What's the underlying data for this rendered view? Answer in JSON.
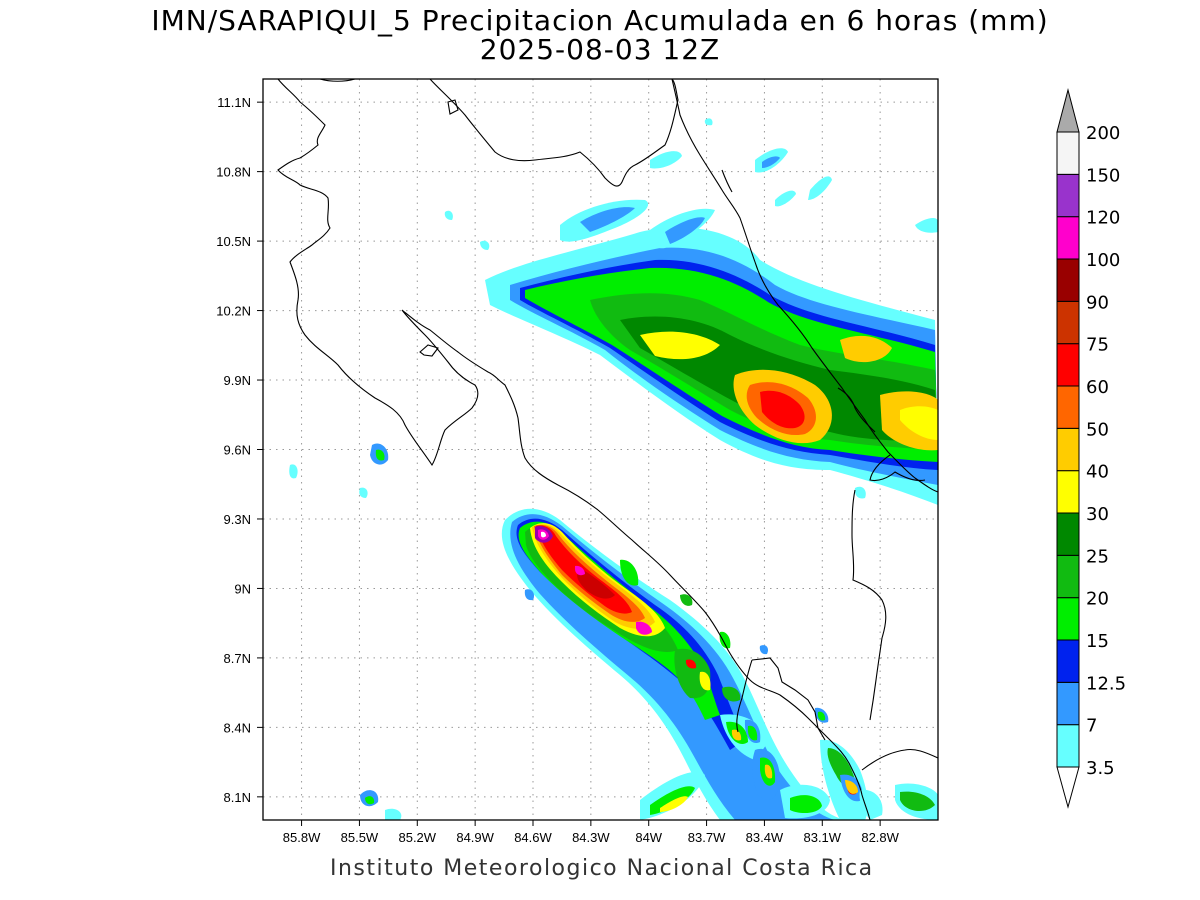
{
  "title": "IMN/SARAPIQUI_5 Precipitacion Acumulada en 6 horas (mm)",
  "subtitle": "2025-08-03 12Z",
  "footer": "Instituto Meteorologico Nacional Costa Rica",
  "map": {
    "lon_range": [
      -86.0,
      -82.5
    ],
    "lat_range": [
      8.0,
      11.2
    ],
    "lon_ticks": [
      "85.8W",
      "85.5W",
      "85.2W",
      "84.9W",
      "84.6W",
      "84.3W",
      "84W",
      "83.7W",
      "83.4W",
      "83.1W",
      "82.8W"
    ],
    "lon_values": [
      -85.8,
      -85.5,
      -85.2,
      -84.9,
      -84.6,
      -84.3,
      -84.0,
      -83.7,
      -83.4,
      -83.1,
      -82.8
    ],
    "lat_ticks": [
      "8.1N",
      "8.4N",
      "8.7N",
      "9N",
      "9.3N",
      "9.6N",
      "9.9N",
      "10.2N",
      "10.5N",
      "10.8N",
      "11.1N"
    ],
    "lat_values": [
      8.1,
      8.4,
      8.7,
      9.0,
      9.3,
      9.6,
      9.9,
      10.2,
      10.5,
      10.8,
      11.1
    ],
    "grid": "dotted"
  },
  "colorbar": {
    "labels": [
      "3.5",
      "7",
      "12.5",
      "15",
      "20",
      "25",
      "30",
      "40",
      "50",
      "60",
      "75",
      "90",
      "100",
      "120",
      "150",
      "200"
    ],
    "colors": [
      "#66ffff",
      "#3399ff",
      "#0022ee",
      "#00ee00",
      "#11bb11",
      "#008800",
      "#ffff00",
      "#ffcc00",
      "#ff6600",
      "#ff0000",
      "#cc3300",
      "#990000",
      "#ff00cc",
      "#9933cc",
      "#f5f5f5",
      "#aaaaaa"
    ]
  },
  "coast_color": "#000000"
}
